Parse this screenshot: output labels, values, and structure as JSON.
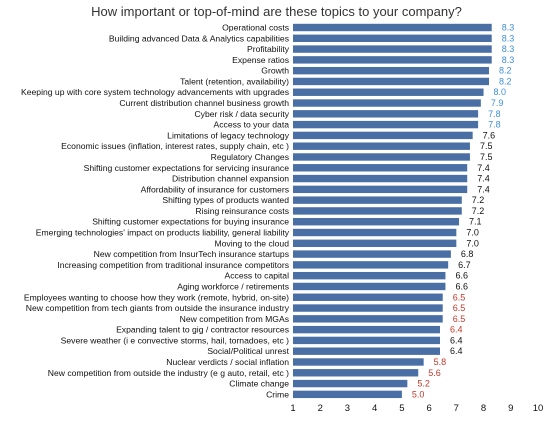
{
  "chart_data": {
    "type": "bar",
    "orientation": "horizontal",
    "title": "How important or top-of-mind are these topics to your company?",
    "xlabel": "",
    "ylabel": "",
    "xlim": [
      1,
      10
    ],
    "x_ticks": [
      "1",
      "2",
      "3",
      "4",
      "5",
      "6",
      "7",
      "8",
      "9",
      "10"
    ],
    "grid": false,
    "legend": "none",
    "colors": {
      "bar": "#4a6fa5",
      "value_high": "#3f8fd4",
      "value_mid": "#111111",
      "value_low": "#c0392b"
    },
    "categories": [
      "Operational costs",
      "Building advanced Data & Analytics capabilities",
      "Profitability",
      "Expense ratios",
      "Growth",
      "Talent (retention, availability)",
      "Keeping up with core system technology advancements with upgrades",
      "Current distribution channel business growth",
      "Cyber risk / data security",
      "Access to your data",
      "Limitations of legacy technology",
      "Economic issues (inflation, interest rates, supply chain, etc )",
      "Regulatory Changes",
      "Shifting customer expectations for servicing insurance",
      "Distribution channel expansion",
      "Affordability of insurance for customers",
      "Shifting types of products wanted",
      "Rising reinsurance costs",
      "Shifting customer expectations for buying insurance",
      "Emerging technologies' impact on products liability, general liability",
      "Moving to the cloud",
      "New competition from InsurTech insurance startups",
      "Increasing competition from traditional insurance competitors",
      "Access to capital",
      "Aging workforce / retirements",
      "Employees wanting to choose how they work (remote, hybrid, on-site)",
      "New competition from tech giants from outside the insurance industry",
      "New competition from MGAs",
      "Expanding talent to gig / contractor resources",
      "Severe weather (i e  convective storms, hail, tornadoes, etc )",
      "Social/Political unrest",
      "Nuclear verdicts / social inflation",
      "New competition from outside the industry (e g  auto, retail, etc )",
      "Climate change",
      "Crime"
    ],
    "values": [
      8.3,
      8.3,
      8.3,
      8.3,
      8.2,
      8.2,
      8.0,
      7.9,
      7.8,
      7.8,
      7.6,
      7.5,
      7.5,
      7.4,
      7.4,
      7.4,
      7.2,
      7.2,
      7.1,
      7.0,
      7.0,
      6.8,
      6.7,
      6.6,
      6.6,
      6.5,
      6.5,
      6.5,
      6.4,
      6.4,
      6.4,
      5.8,
      5.6,
      5.2,
      5.0
    ],
    "value_labels": [
      "8.3",
      "8.3",
      "8.3",
      "8.3",
      "8.2",
      "8.2",
      "8.0",
      "7.9",
      "7.8",
      "7.8",
      "7.6",
      "7.5",
      "7.5",
      "7.4",
      "7.4",
      "7.4",
      "7.2",
      "7.2",
      "7.1",
      "7.0",
      "7.0",
      "6.8",
      "6.7",
      "6.6",
      "6.6",
      "6.5",
      "6.5",
      "6.5",
      "6.4",
      "6.4",
      "6.4",
      "5.8",
      "5.6",
      "5.2",
      "5.0"
    ],
    "value_label_tier": [
      "high",
      "high",
      "high",
      "high",
      "high",
      "high",
      "high",
      "high",
      "high",
      "high",
      "mid",
      "mid",
      "mid",
      "mid",
      "mid",
      "mid",
      "mid",
      "mid",
      "mid",
      "mid",
      "mid",
      "mid",
      "mid",
      "mid",
      "mid",
      "low",
      "low",
      "low",
      "low",
      "mid",
      "mid",
      "low",
      "low",
      "low",
      "low"
    ]
  }
}
